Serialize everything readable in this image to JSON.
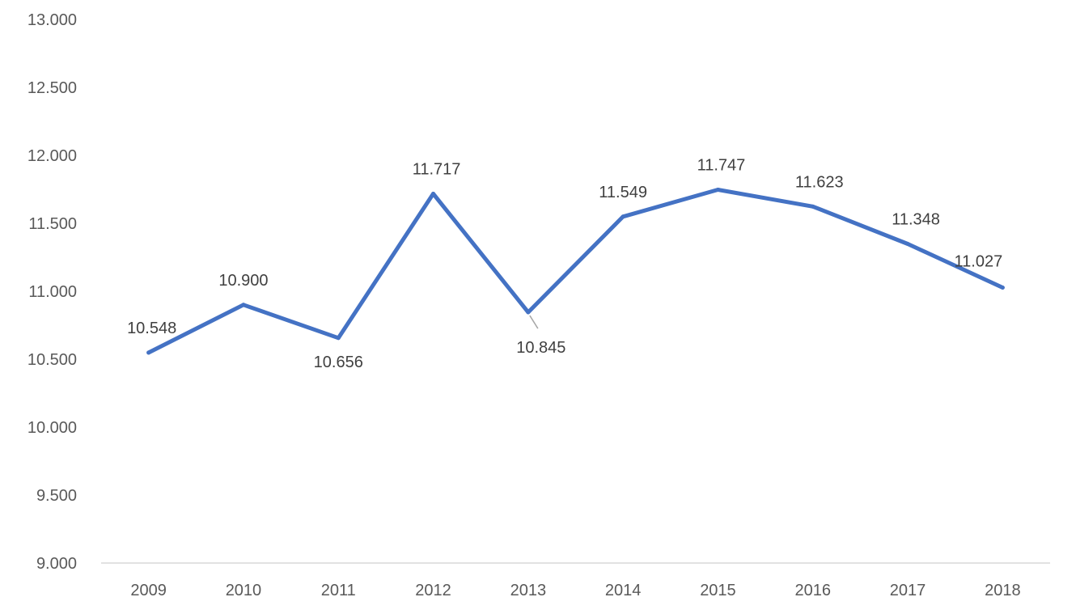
{
  "chart_data": {
    "type": "line",
    "title": "",
    "xlabel": "",
    "ylabel": "",
    "categories": [
      "2009",
      "2010",
      "2011",
      "2012",
      "2013",
      "2014",
      "2015",
      "2016",
      "2017",
      "2018"
    ],
    "series": [
      {
        "values": [
          10548,
          10900,
          10656,
          11717,
          10845,
          11549,
          11747,
          11623,
          11348,
          11027
        ],
        "labels": [
          "10.548",
          "10.900",
          "10.656",
          "11.717",
          "10.845",
          "11.549",
          "11.747",
          "11.623",
          "11.348",
          "11.027"
        ],
        "color": "#4472C4"
      }
    ],
    "ylim": [
      9000,
      13000
    ],
    "yticks": [
      9000,
      9500,
      10000,
      10500,
      11000,
      11500,
      12000,
      12500,
      13000
    ],
    "ytick_labels": [
      "9.000",
      "9.500",
      "10.000",
      "10.500",
      "11.000",
      "11.500",
      "12.000",
      "12.500",
      "13.000"
    ],
    "grid": false,
    "legend": "none",
    "axis_color": "#D9D9D9",
    "text_color": "#595959"
  }
}
